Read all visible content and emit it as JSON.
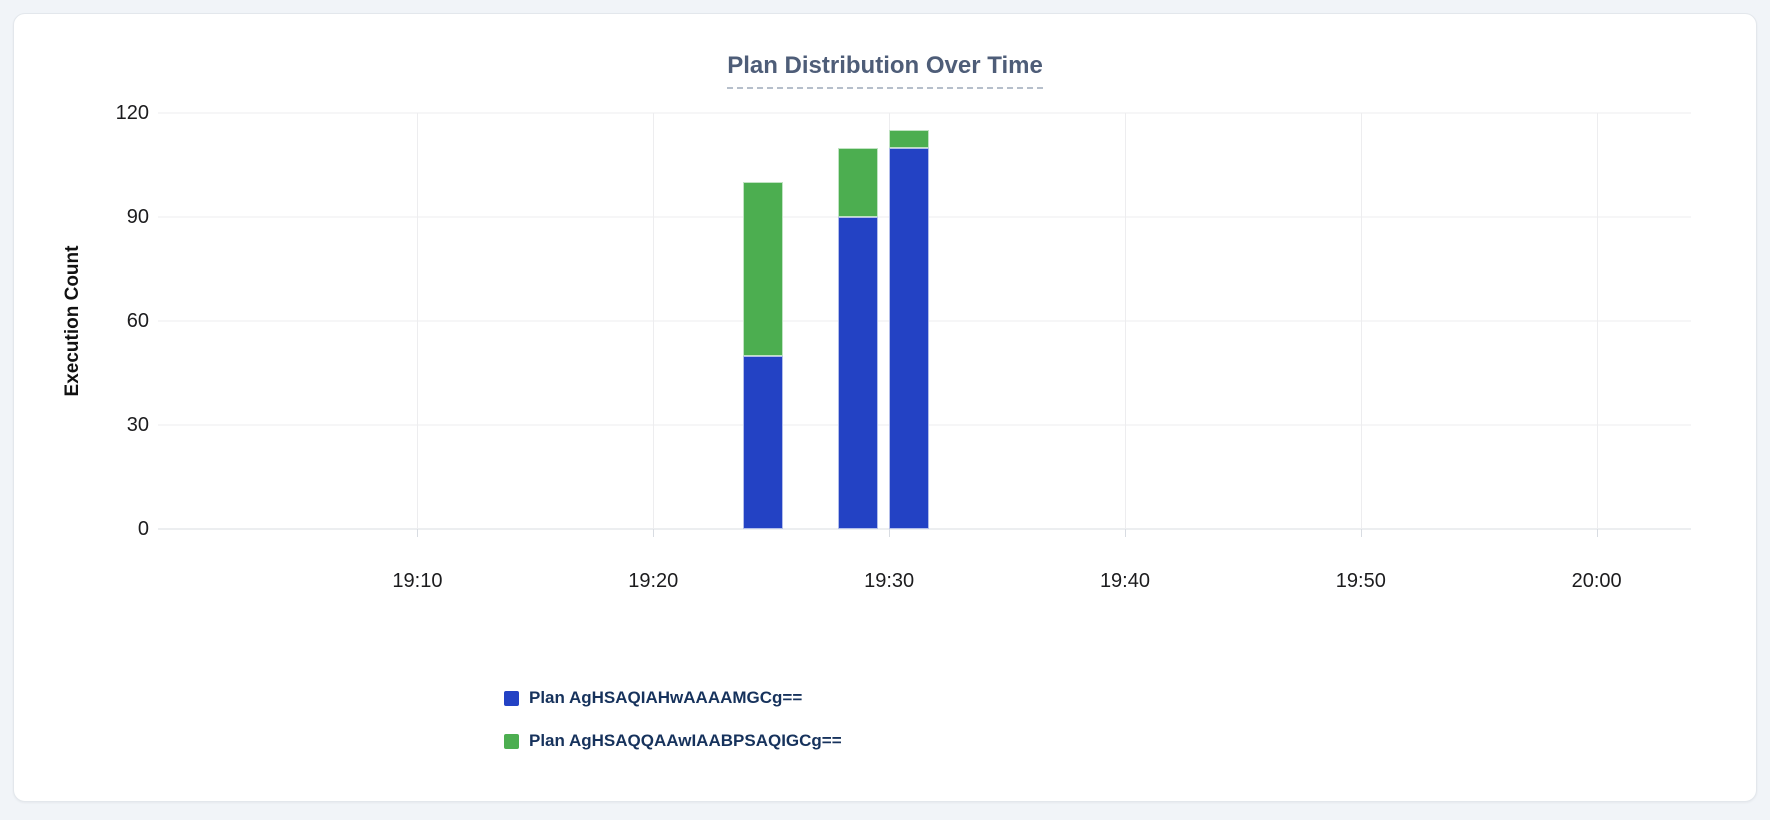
{
  "chart_data": {
    "type": "bar",
    "stacked": true,
    "title": "Plan Distribution Over Time",
    "xlabel": "",
    "ylabel": "Execution Count",
    "ylim": [
      0,
      120
    ],
    "y_ticks": [
      0,
      30,
      60,
      90,
      120
    ],
    "x_ticks": [
      "19:10",
      "19:20",
      "19:30",
      "19:40",
      "19:50",
      "20:00"
    ],
    "x_axis_range": {
      "start": "18:59",
      "end": "20:04"
    },
    "grid": true,
    "legend_position": "bottom-left",
    "x": [
      "19:24:40",
      "19:28:40",
      "19:30:50"
    ],
    "series": [
      {
        "name": "Plan AgHSAQIAHwAAAAMGCg==",
        "color": "#2342c4",
        "values": [
          50,
          90,
          110
        ]
      },
      {
        "name": "Plan AgHSAQQAAwIAABPSAQIGCg==",
        "color": "#4cae50",
        "values": [
          50,
          20,
          5
        ]
      }
    ]
  }
}
